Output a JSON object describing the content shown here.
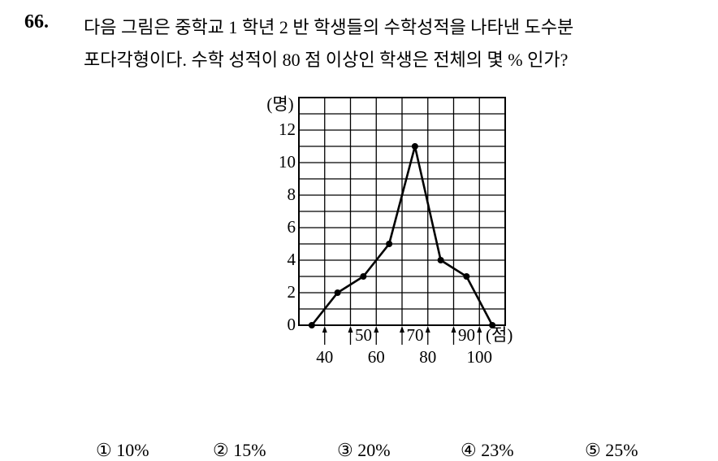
{
  "question": {
    "number": "66.",
    "lines": [
      "다음 그림은 중학교 1 학년 2 반 학생들의 수학성적을 나타낸 도수분",
      "포다각형이다. 수학 성적이 80 점 이상인 학생은 전체의 몇 % 인가?"
    ]
  },
  "chart_data": {
    "type": "line",
    "y_label": "(명)",
    "x_label": "(점)",
    "x": [
      35,
      45,
      55,
      65,
      75,
      85,
      95,
      105
    ],
    "values": [
      0,
      2,
      3,
      5,
      11,
      4,
      3,
      0
    ],
    "xlim": [
      30,
      110
    ],
    "xticks": [
      40,
      50,
      60,
      70,
      80,
      90,
      100
    ],
    "ylim": [
      0,
      14
    ],
    "yticks": [
      0,
      2,
      4,
      6,
      8,
      10,
      12
    ],
    "grid": true,
    "color": "#000000"
  },
  "choices": [
    "① 10%",
    "② 15%",
    "③ 20%",
    "④ 23%",
    "⑤ 25%"
  ]
}
